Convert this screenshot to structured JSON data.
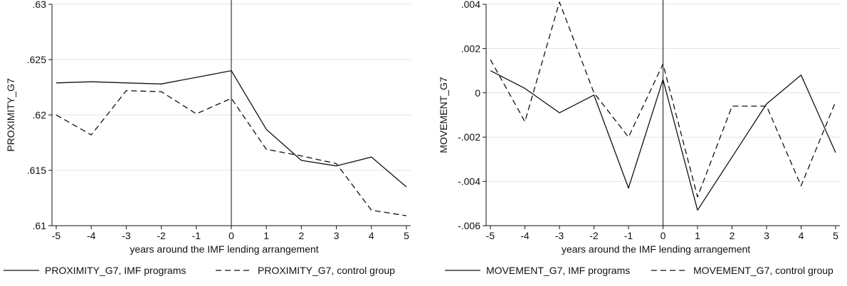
{
  "chart_data": [
    {
      "type": "line",
      "title": "",
      "xlabel": "years around the IMF lending arrangement",
      "ylabel": "PROXIMITY_G7",
      "xlim": [
        -5,
        5
      ],
      "ylim": [
        0.61,
        0.63
      ],
      "x_ticks": [
        -5,
        -4,
        -3,
        -2,
        -1,
        0,
        1,
        2,
        3,
        4,
        5
      ],
      "x_tick_labels": [
        "-5",
        "-4",
        "-3",
        "-2",
        "-1",
        "0",
        "1",
        "2",
        "3",
        "4",
        "5"
      ],
      "y_ticks": [
        0.61,
        0.615,
        0.62,
        0.625,
        0.63
      ],
      "y_tick_labels": [
        ".61",
        ".615",
        ".62",
        ".625",
        ".63"
      ],
      "grid": "horizontal",
      "reference_line_x": 0,
      "legend_position": "bottom",
      "x": [
        -5,
        -4,
        -3,
        -2,
        -1,
        0,
        1,
        2,
        3,
        4,
        5
      ],
      "series": [
        {
          "name": "PROXIMITY_G7, IMF programs",
          "style": "solid",
          "values": [
            0.6229,
            0.623,
            0.6229,
            0.6228,
            0.6234,
            0.624,
            0.6187,
            0.6159,
            0.6154,
            0.6162,
            0.6135
          ]
        },
        {
          "name": "PROXIMITY_G7, control group",
          "style": "dashed",
          "values": [
            0.62,
            0.6182,
            0.6222,
            0.6221,
            0.6201,
            0.6215,
            0.6169,
            0.6163,
            0.6156,
            0.6114,
            0.6109
          ]
        }
      ]
    },
    {
      "type": "line",
      "title": "",
      "xlabel": "years around the IMF lending arrangement",
      "ylabel": "MOVEMENT_G7",
      "xlim": [
        -5,
        5
      ],
      "ylim": [
        -0.006,
        0.004
      ],
      "x_ticks": [
        -5,
        -4,
        -3,
        -2,
        -1,
        0,
        1,
        2,
        3,
        4,
        5
      ],
      "x_tick_labels": [
        "-5",
        "-4",
        "-3",
        "-2",
        "-1",
        "0",
        "1",
        "2",
        "3",
        "4",
        "5"
      ],
      "y_ticks": [
        -0.006,
        -0.004,
        -0.002,
        0,
        0.002,
        0.004
      ],
      "y_tick_labels": [
        "-.006",
        "-.004",
        "-.002",
        "0",
        ".002",
        ".004"
      ],
      "grid": "horizontal",
      "reference_line_x": 0,
      "legend_position": "bottom",
      "x": [
        -5,
        -4,
        -3,
        -2,
        -1,
        0,
        1,
        2,
        3,
        4,
        5
      ],
      "series": [
        {
          "name": "MOVEMENT_G7, IMF programs",
          "style": "solid",
          "values": [
            0.001,
            0.0002,
            -0.0009,
            -0.0001,
            -0.0043,
            0.0006,
            -0.0053,
            -0.0029,
            -0.0005,
            0.0008,
            -0.0027
          ]
        },
        {
          "name": "MOVEMENT_G7, control group",
          "style": "dashed",
          "values": [
            0.0015,
            -0.0013,
            0.0041,
            0.0,
            -0.002,
            0.0013,
            -0.0047,
            -0.0006,
            -0.0006,
            -0.0042,
            -0.0004
          ]
        }
      ]
    }
  ]
}
